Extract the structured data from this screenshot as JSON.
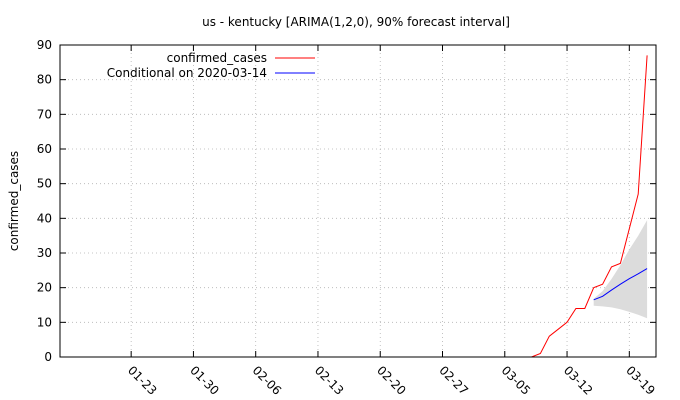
{
  "chart_data": {
    "type": "line",
    "title": "us - kentucky [ARIMA(1,2,0), 90% forecast interval]",
    "xlabel": "",
    "ylabel": "confirmed_cases",
    "xlim": [
      "2020-01-15",
      "2020-03-22"
    ],
    "ylim": [
      0,
      90
    ],
    "yticks": [
      0,
      10,
      20,
      30,
      40,
      50,
      60,
      70,
      80,
      90
    ],
    "xticks": [
      {
        "date": "2020-01-23",
        "label": "01-23"
      },
      {
        "date": "2020-01-30",
        "label": "01-30"
      },
      {
        "date": "2020-02-06",
        "label": "02-06"
      },
      {
        "date": "2020-02-13",
        "label": "02-13"
      },
      {
        "date": "2020-02-20",
        "label": "02-20"
      },
      {
        "date": "2020-02-27",
        "label": "02-27"
      },
      {
        "date": "2020-03-05",
        "label": "03-05"
      },
      {
        "date": "2020-03-12",
        "label": "03-12"
      },
      {
        "date": "2020-03-19",
        "label": "03-19"
      }
    ],
    "grid": true,
    "legend_position": "top-left",
    "series": [
      {
        "name": "confirmed_cases",
        "color": "#ff0000",
        "x": [
          "2020-01-15",
          "2020-01-22",
          "2020-01-29",
          "2020-02-05",
          "2020-02-12",
          "2020-02-19",
          "2020-02-26",
          "2020-03-04",
          "2020-03-08",
          "2020-03-09",
          "2020-03-10",
          "2020-03-11",
          "2020-03-12",
          "2020-03-13",
          "2020-03-14",
          "2020-03-15",
          "2020-03-16",
          "2020-03-17",
          "2020-03-18",
          "2020-03-19",
          "2020-03-20",
          "2020-03-21"
        ],
        "y": [
          0,
          0,
          0,
          0,
          0,
          0,
          0,
          0,
          0,
          1,
          6,
          8,
          10,
          14,
          14,
          20,
          21,
          26,
          27,
          37,
          47,
          87
        ]
      },
      {
        "name": "Conditional on 2020-03-14",
        "color": "#0000ff",
        "x": [
          "2020-03-15",
          "2020-03-16",
          "2020-03-17",
          "2020-03-18",
          "2020-03-19",
          "2020-03-20",
          "2020-03-21"
        ],
        "y": [
          16.5,
          17.5,
          19.3,
          21,
          22.6,
          24,
          25.5
        ]
      }
    ],
    "interval": {
      "label": "90% forecast interval",
      "color": "#dcdcdc",
      "x": [
        "2020-03-15",
        "2020-03-16",
        "2020-03-17",
        "2020-03-18",
        "2020-03-19",
        "2020-03-20",
        "2020-03-21"
      ],
      "lower": [
        14.8,
        14.6,
        14.3,
        13.8,
        13,
        12.2,
        11.2
      ],
      "upper": [
        16.8,
        19,
        22.5,
        26.5,
        31,
        35,
        39.5
      ]
    }
  }
}
